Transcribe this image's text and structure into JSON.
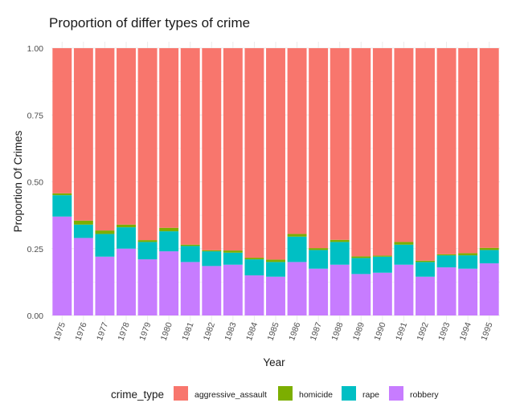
{
  "chart_data": {
    "type": "bar",
    "stacked": true,
    "normalized": true,
    "title": "Proportion of differ types of crime",
    "xlabel": "Year",
    "ylabel": "Proportion Of Crimes",
    "ylim": [
      0,
      1
    ],
    "y_ticks": [
      "0.00",
      "0.25",
      "0.50",
      "0.75",
      "1.00"
    ],
    "grid": true,
    "legend_position": "bottom",
    "legend_title": "crime_type",
    "categories": [
      "1975",
      "1976",
      "1977",
      "1978",
      "1979",
      "1980",
      "1981",
      "1982",
      "1983",
      "1984",
      "1985",
      "1986",
      "1987",
      "1988",
      "1989",
      "1990",
      "1991",
      "1992",
      "1993",
      "1994",
      "1995"
    ],
    "series": [
      {
        "name": "robbery",
        "color": "#C77CFF",
        "values": [
          0.37,
          0.29,
          0.22,
          0.25,
          0.21,
          0.24,
          0.2,
          0.185,
          0.19,
          0.15,
          0.145,
          0.2,
          0.175,
          0.19,
          0.155,
          0.16,
          0.19,
          0.145,
          0.18,
          0.175,
          0.195
        ]
      },
      {
        "name": "rape",
        "color": "#00BFC4",
        "values": [
          0.08,
          0.05,
          0.085,
          0.08,
          0.065,
          0.075,
          0.06,
          0.055,
          0.045,
          0.06,
          0.055,
          0.095,
          0.07,
          0.085,
          0.06,
          0.06,
          0.075,
          0.055,
          0.045,
          0.05,
          0.05
        ]
      },
      {
        "name": "homicide",
        "color": "#7CAE00",
        "values": [
          0.007,
          0.015,
          0.013,
          0.01,
          0.007,
          0.013,
          0.005,
          0.004,
          0.008,
          0.006,
          0.009,
          0.01,
          0.007,
          0.008,
          0.006,
          0.004,
          0.01,
          0.005,
          0.004,
          0.008,
          0.008
        ]
      },
      {
        "name": "aggressive_assault",
        "color": "#F8766D",
        "values": [
          0.543,
          0.645,
          0.682,
          0.66,
          0.718,
          0.672,
          0.735,
          0.756,
          0.757,
          0.784,
          0.791,
          0.695,
          0.748,
          0.717,
          0.779,
          0.776,
          0.725,
          0.795,
          0.771,
          0.767,
          0.747
        ]
      }
    ],
    "legend_order": [
      "aggressive_assault",
      "homicide",
      "rape",
      "robbery"
    ]
  }
}
